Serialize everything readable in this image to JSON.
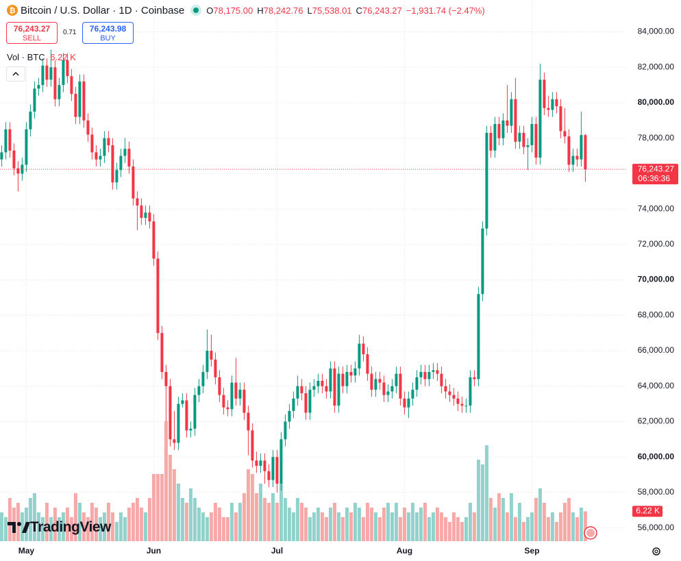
{
  "header": {
    "symbol": "Bitcoin / U.S. Dollar · 1D · Coinbase",
    "o_label": "O",
    "o": "78,175.00",
    "h_label": "H",
    "h": "78,242.76",
    "l_label": "L",
    "l": "75,538.01",
    "c_label": "C",
    "c": "76,243.27",
    "change": "−1,931.74 (−2.47%)"
  },
  "trade": {
    "sell_price": "76,243.27",
    "sell": "SELL",
    "spread": "0.71",
    "buy_price": "76,243.98",
    "buy": "BUY"
  },
  "brand": "TradingView",
  "chart_data": {
    "type": "candlestick",
    "volume_title": "Vol · BTC",
    "volume_value_label": "6.22 K",
    "last_price_label": "76,243.27",
    "countdown": "06:36:36",
    "up_color": "#089981",
    "down_color": "#f23645",
    "volume_up_color": "#92d2cc",
    "volume_down_color": "#f7a9a7",
    "grid": true,
    "xlim": [
      -0.4,
      152.1
    ],
    "xticks": [
      {
        "value": 6,
        "label": "May"
      },
      {
        "value": 37,
        "label": "Jun"
      },
      {
        "value": 67,
        "label": "Jul"
      },
      {
        "value": 98,
        "label": "Aug"
      },
      {
        "value": 129,
        "label": "Sep"
      }
    ],
    "ylim": [
      55250,
      85800
    ],
    "yticks": [
      {
        "value": 56000,
        "label": "56,000.00"
      },
      {
        "value": 58000,
        "label": "58,000.00"
      },
      {
        "value": 60000,
        "label": "60,000.00"
      },
      {
        "value": 62000,
        "label": "62,000.00"
      },
      {
        "value": 64000,
        "label": "64,000.00"
      },
      {
        "value": 66000,
        "label": "66,000.00"
      },
      {
        "value": 68000,
        "label": "68,000.00"
      },
      {
        "value": 70000,
        "label": "70,000.00"
      },
      {
        "value": 72000,
        "label": "72,000.00"
      },
      {
        "value": 74000,
        "label": "74,000.00"
      },
      {
        "value": 76000,
        "label": "76,000.00"
      },
      {
        "value": 78000,
        "label": "78,000.00"
      },
      {
        "value": 80000,
        "label": "80,000.00"
      },
      {
        "value": 82000,
        "label": "82,000.00"
      },
      {
        "value": 84000,
        "label": "84,000.00"
      }
    ],
    "open": [
      76800,
      77200,
      78500,
      77300,
      76300,
      76000,
      76500,
      78500,
      79500,
      80800,
      81000,
      82100,
      81300,
      82000,
      80200,
      81000,
      82400,
      81500,
      80500,
      79200,
      81200,
      79000,
      78200,
      77200,
      76800,
      77000,
      78000,
      77600,
      75500,
      76200,
      77000,
      77400,
      76400,
      74600,
      74200,
      73500,
      73800,
      73300,
      71200,
      67000,
      64800,
      64000,
      61000,
      60800,
      63000,
      63200,
      61500,
      61600,
      63500,
      64000,
      64800,
      66000,
      65500,
      64500,
      63500,
      62800,
      62700,
      64200,
      63300,
      63800,
      62500,
      61500,
      59800,
      59500,
      59800,
      59200,
      58700,
      60000,
      58500,
      61000,
      62000,
      62600,
      63300,
      64000,
      63600,
      62500,
      63800,
      64000,
      64300,
      64000,
      63700,
      65000,
      62900,
      64700,
      64000,
      64800,
      64600,
      65000,
      66400,
      65800,
      64700,
      63800,
      64400,
      64200,
      63500,
      63700,
      64000,
      64700,
      63300,
      62800,
      63300,
      63800,
      64500,
      64800,
      64400,
      64800,
      64900,
      64700,
      64000,
      63700,
      63500,
      63300,
      63000,
      62900,
      62900,
      64500,
      64400,
      69200,
      72900,
      78300,
      77300,
      78800,
      78000,
      79000,
      78700,
      80200,
      77800,
      78300,
      77500,
      77600,
      78800,
      76900,
      81300,
      79700,
      79600,
      80200,
      79800,
      78400,
      78100,
      76500,
      77000,
      76800,
      78175
    ],
    "high": [
      77600,
      78900,
      78900,
      77700,
      76700,
      76900,
      78900,
      79900,
      81200,
      81400,
      82500,
      82500,
      83000,
      82400,
      81400,
      82800,
      82800,
      81900,
      80900,
      81600,
      81600,
      79400,
      78600,
      77600,
      77400,
      78400,
      78400,
      78000,
      76600,
      77400,
      78000,
      77800,
      76800,
      75000,
      74600,
      74200,
      74200,
      73700,
      71600,
      67400,
      65200,
      64400,
      62600,
      63400,
      63600,
      63600,
      62000,
      63900,
      64400,
      65200,
      67200,
      66900,
      65900,
      64900,
      63900,
      63200,
      64600,
      65600,
      64200,
      64200,
      62900,
      61900,
      60300,
      60200,
      60200,
      59600,
      60400,
      60400,
      61400,
      62400,
      63000,
      63700,
      64600,
      64400,
      64000,
      64200,
      64400,
      64700,
      64700,
      64400,
      65400,
      65400,
      65100,
      65100,
      65200,
      65200,
      65400,
      66900,
      66800,
      66200,
      65100,
      64800,
      64800,
      64600,
      64100,
      64400,
      65100,
      65100,
      63700,
      63700,
      64200,
      64900,
      65200,
      65200,
      65200,
      65300,
      65300,
      65100,
      64400,
      64100,
      63900,
      63700,
      63400,
      63300,
      64900,
      64900,
      69600,
      73300,
      78700,
      78700,
      79200,
      79200,
      79400,
      81000,
      80600,
      81400,
      78700,
      78700,
      78000,
      79200,
      79200,
      82200,
      81700,
      80400,
      80600,
      80600,
      80200,
      79700,
      78500,
      77400,
      77400,
      79500,
      78242.76
    ],
    "low": [
      76400,
      76800,
      76900,
      75900,
      75000,
      75600,
      76100,
      78100,
      79100,
      80400,
      80600,
      80900,
      80900,
      79800,
      79800,
      80600,
      81100,
      80100,
      78800,
      78800,
      78600,
      77800,
      76800,
      76400,
      76400,
      76600,
      77200,
      75100,
      75100,
      75800,
      76600,
      76000,
      74200,
      72800,
      73100,
      73100,
      72900,
      70800,
      66600,
      64400,
      62000,
      60600,
      60400,
      60400,
      62800,
      61100,
      61100,
      61200,
      63100,
      63600,
      64400,
      65100,
      64100,
      63100,
      62400,
      62300,
      62300,
      62900,
      62900,
      62100,
      60100,
      59400,
      59100,
      59100,
      58500,
      58300,
      58300,
      58000,
      58100,
      60600,
      61600,
      62200,
      62900,
      63200,
      62100,
      62100,
      63400,
      63600,
      63600,
      63300,
      63300,
      62500,
      62500,
      63600,
      63600,
      64200,
      64200,
      64600,
      65400,
      64300,
      63400,
      63400,
      63800,
      63100,
      63100,
      63300,
      63600,
      62900,
      62400,
      62200,
      62900,
      63400,
      64100,
      64000,
      64000,
      64400,
      64300,
      63600,
      63300,
      63100,
      62900,
      62600,
      62500,
      62500,
      62500,
      64000,
      64000,
      68800,
      72500,
      76900,
      76900,
      77600,
      77600,
      78300,
      78300,
      77400,
      77400,
      77100,
      76200,
      77200,
      76500,
      76500,
      79300,
      79200,
      79200,
      79400,
      78000,
      77700,
      76100,
      76100,
      76400,
      76400,
      75538.01
    ],
    "close": [
      77200,
      78500,
      77300,
      76300,
      76000,
      76500,
      78500,
      79500,
      80800,
      81000,
      82100,
      81300,
      82000,
      80200,
      81000,
      82400,
      81500,
      80500,
      79200,
      81200,
      79000,
      78200,
      77200,
      76800,
      77000,
      78000,
      77600,
      75500,
      76200,
      77000,
      77400,
      76400,
      74600,
      74200,
      73500,
      73800,
      73300,
      71200,
      67000,
      64800,
      64000,
      61000,
      60800,
      63000,
      63200,
      61500,
      61600,
      63500,
      64000,
      64800,
      66000,
      65500,
      64500,
      63500,
      62800,
      62700,
      64200,
      63300,
      63800,
      62500,
      61500,
      59800,
      59500,
      59800,
      59200,
      58700,
      60000,
      58500,
      61000,
      62000,
      62600,
      63300,
      64000,
      63600,
      62500,
      63800,
      64000,
      64300,
      64000,
      63700,
      65000,
      62900,
      64700,
      64000,
      64800,
      64600,
      65000,
      66400,
      65800,
      64700,
      63800,
      64400,
      64200,
      63500,
      63700,
      64000,
      64700,
      63300,
      62800,
      63300,
      63800,
      64500,
      64800,
      64400,
      64800,
      64900,
      64700,
      64000,
      63700,
      63500,
      63300,
      63000,
      62900,
      62900,
      64500,
      64400,
      69200,
      72900,
      78300,
      77300,
      78800,
      78000,
      79000,
      78700,
      80200,
      77800,
      78300,
      77500,
      77600,
      78800,
      76900,
      81300,
      79700,
      79600,
      80200,
      79800,
      78400,
      78100,
      76500,
      77000,
      76800,
      78175,
      76243.27
    ],
    "volume": [
      6,
      5,
      9,
      7,
      8,
      6,
      7,
      9,
      10,
      6,
      5,
      8,
      5,
      7,
      5,
      6,
      7,
      5,
      10,
      8,
      6,
      5,
      8,
      7,
      5,
      6,
      8,
      6,
      4,
      6,
      5,
      7,
      8,
      9,
      7,
      6,
      9,
      14,
      14,
      14,
      25,
      18,
      15,
      12,
      9,
      8,
      11,
      9,
      7,
      6,
      5,
      6,
      8,
      7,
      5,
      5,
      8,
      6,
      8,
      10,
      15,
      14,
      10,
      12,
      9,
      8,
      10,
      8,
      12,
      9,
      7,
      6,
      9,
      8,
      7,
      5,
      6,
      7,
      6,
      5,
      7,
      8,
      6,
      5,
      7,
      6,
      8,
      7,
      5,
      8,
      7,
      6,
      5,
      7,
      8,
      6,
      8,
      5,
      7,
      6,
      8,
      6,
      7,
      8,
      5,
      6,
      7,
      6,
      5,
      4,
      6,
      5,
      4,
      5,
      8,
      6,
      17,
      16,
      20,
      9,
      7,
      10,
      9,
      6,
      10,
      5,
      8,
      4,
      5,
      6,
      9,
      11,
      8,
      5,
      6,
      4,
      6,
      8,
      9,
      6,
      5,
      7,
      6.22
    ]
  }
}
